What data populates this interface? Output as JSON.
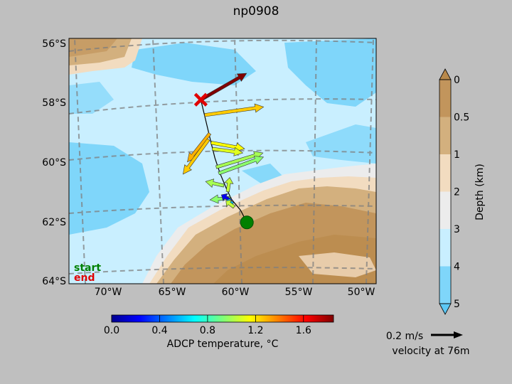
{
  "title": "np0908",
  "map": {
    "lat_ticks": [
      "56°S",
      "58°S",
      "60°S",
      "62°S",
      "64°S"
    ],
    "lon_ticks": [
      "70°W",
      "65°W",
      "60°W",
      "55°W",
      "50°W"
    ],
    "legend_start": "start",
    "legend_end": "end",
    "start_color": "#008000",
    "end_color": "#e00000"
  },
  "depth_colorbar": {
    "label": "Depth (km)",
    "ticks": [
      "0",
      "0.5",
      "1",
      "2",
      "3",
      "4",
      "5"
    ],
    "colors": [
      "#c2955c",
      "#d3b07e",
      "#f2dcc0",
      "#ececec",
      "#c9efff",
      "#7fd6fa"
    ]
  },
  "temp_colorbar": {
    "label": "ADCP temperature, °C",
    "ticks": [
      "0.0",
      "0.4",
      "0.8",
      "1.2",
      "1.6"
    ],
    "range": [
      0.0,
      1.85
    ]
  },
  "scale_arrow": {
    "speed_label": "0.2 m/s",
    "depth_label": "velocity at 76m"
  },
  "chart_data": {
    "type": "scatter",
    "title": "np0908",
    "xlabel": "",
    "ylabel": "",
    "xlim": [
      -73,
      -49
    ],
    "ylim": [
      -64,
      -56
    ],
    "track": [
      [
        -59.1,
        -62.0
      ],
      [
        -59.6,
        -61.6
      ],
      [
        -60.3,
        -61.25
      ],
      [
        -60.7,
        -60.9
      ],
      [
        -61.2,
        -60.4
      ],
      [
        -61.6,
        -59.9
      ],
      [
        -61.9,
        -59.4
      ],
      [
        -62.3,
        -58.7
      ],
      [
        -62.7,
        -58.0
      ]
    ],
    "vectors": [
      {
        "lon": -62.4,
        "lat": -58.5,
        "u": 0.58,
        "v": 0.08,
        "temp": 1.25
      },
      {
        "lon": -62.7,
        "lat": -58.0,
        "u": 0.45,
        "v": 0.26,
        "temp": 1.85
      },
      {
        "lon": -62.0,
        "lat": -59.1,
        "u": -0.22,
        "v": -0.28,
        "temp": 1.3
      },
      {
        "lon": -62.1,
        "lat": -59.3,
        "u": -0.25,
        "v": -0.34,
        "temp": 1.25
      },
      {
        "lon": -61.9,
        "lat": -59.4,
        "u": 0.33,
        "v": -0.06,
        "temp": 1.15
      },
      {
        "lon": -61.8,
        "lat": -59.6,
        "u": 0.3,
        "v": -0.04,
        "temp": 1.1
      },
      {
        "lon": -61.5,
        "lat": -60.2,
        "u": 0.46,
        "v": 0.14,
        "temp": 1.0
      },
      {
        "lon": -61.3,
        "lat": -60.4,
        "u": 0.44,
        "v": 0.16,
        "temp": 0.95
      },
      {
        "lon": -60.9,
        "lat": -60.8,
        "u": -0.18,
        "v": 0.04,
        "temp": 1.0
      },
      {
        "lon": -60.6,
        "lat": -61.0,
        "u": 0.02,
        "v": 0.14,
        "temp": 1.05
      },
      {
        "lon": -60.4,
        "lat": -61.2,
        "u": -0.2,
        "v": -0.02,
        "temp": 0.95
      },
      {
        "lon": -60.3,
        "lat": -61.3,
        "u": -0.1,
        "v": 0.06,
        "temp": 0.2
      },
      {
        "lon": -60.2,
        "lat": -61.4,
        "u": -0.06,
        "v": 0.04,
        "temp": 0.6
      },
      {
        "lon": -60.1,
        "lat": -61.5,
        "u": -0.08,
        "v": 0.06,
        "temp": 1.05
      }
    ],
    "start": {
      "lon": -59.1,
      "lat": -62.0
    },
    "end": {
      "lon": -62.7,
      "lat": -58.0
    },
    "grid": true
  }
}
